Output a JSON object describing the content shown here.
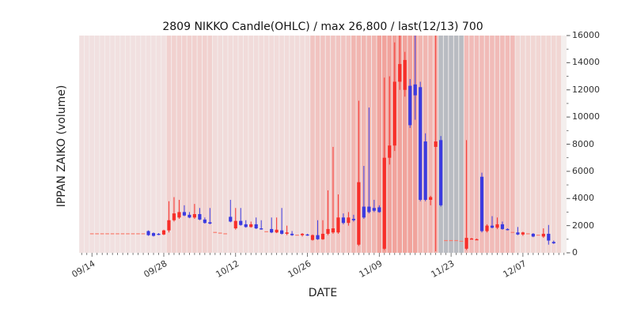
{
  "chart_data": {
    "type": "candlestick",
    "title": "2809 NIKKO Candle(OHLC) / max 26,800 / last(12/13) 700",
    "xlabel": "DATE",
    "ylabel": "IPPAN ZAIKO (volume)",
    "ylim": [
      0,
      16000
    ],
    "yticks": [
      0,
      2000,
      4000,
      6000,
      8000,
      10000,
      12000,
      14000,
      16000
    ],
    "xticks": [
      "09/14",
      "09/28",
      "10/12",
      "10/26",
      "11/09",
      "11/23",
      "12/07"
    ],
    "x_domain": [
      "09/12",
      "12/15"
    ],
    "plot_bg": "#f4efee",
    "colors": {
      "up": "#f72f2a",
      "down": "#3b3be0",
      "flat": "#f87c6e",
      "tick": "#555555"
    },
    "bands": [
      {
        "from": "09/12",
        "to": "09/29",
        "color": "#f0dcdc",
        "alpha": 0.8
      },
      {
        "from": "09/29",
        "to": "10/08",
        "color": "#f0c9c7",
        "alpha": 0.8
      },
      {
        "from": "10/08",
        "to": "10/27",
        "color": "#f0d6d4",
        "alpha": 0.8
      },
      {
        "from": "10/27",
        "to": "11/04",
        "color": "#f0bcb8",
        "alpha": 0.85
      },
      {
        "from": "11/04",
        "to": "11/09",
        "color": "#f0aca6",
        "alpha": 0.85
      },
      {
        "from": "11/09",
        "to": "11/17",
        "color": "#f19a92",
        "alpha": 0.9
      },
      {
        "from": "11/17",
        "to": "11/21",
        "color": "#f0aca6",
        "alpha": 0.85
      },
      {
        "from": "11/21",
        "to": "11/26",
        "color": "#b2b6bd",
        "alpha": 0.9
      },
      {
        "from": "11/26",
        "to": "12/06",
        "color": "#f0b2ae",
        "alpha": 0.85
      },
      {
        "from": "12/06",
        "to": "12/15",
        "color": "#f0cfcc",
        "alpha": 0.8
      }
    ],
    "candles": [
      [
        "09/14",
        1400,
        1400,
        1400,
        1400
      ],
      [
        "09/15",
        1400,
        1400,
        1400,
        1400
      ],
      [
        "09/16",
        1400,
        1400,
        1400,
        1400
      ],
      [
        "09/17",
        1400,
        1400,
        1400,
        1400
      ],
      [
        "09/18",
        1400,
        1400,
        1400,
        1400
      ],
      [
        "09/19",
        1400,
        1400,
        1400,
        1400
      ],
      [
        "09/20",
        1400,
        1400,
        1400,
        1400
      ],
      [
        "09/21",
        1400,
        1400,
        1400,
        1400
      ],
      [
        "09/22",
        1400,
        1400,
        1400,
        1400
      ],
      [
        "09/23",
        1400,
        1400,
        1400,
        1400
      ],
      [
        "09/24",
        1400,
        1400,
        1400,
        1400
      ],
      [
        "09/25",
        1600,
        1650,
        1250,
        1300
      ],
      [
        "09/26",
        1450,
        1500,
        1200,
        1250
      ],
      [
        "09/27",
        1400,
        1450,
        1300,
        1350
      ],
      [
        "09/28",
        1350,
        1700,
        1300,
        1650
      ],
      [
        "09/29",
        1650,
        3800,
        1500,
        2400
      ],
      [
        "09/30",
        2400,
        4100,
        2300,
        2900
      ],
      [
        "10/01",
        2600,
        3900,
        2500,
        3000
      ],
      [
        "10/02",
        3000,
        3500,
        2700,
        2750
      ],
      [
        "10/03",
        2800,
        3000,
        2550,
        2600
      ],
      [
        "10/04",
        2600,
        3600,
        2500,
        2850
      ],
      [
        "10/05",
        2850,
        3300,
        2400,
        2450
      ],
      [
        "10/06",
        2450,
        2600,
        2150,
        2200
      ],
      [
        "10/07",
        2250,
        3300,
        2100,
        2150
      ],
      [
        "10/08",
        1500,
        1500,
        1500,
        1500
      ],
      [
        "10/09",
        1450,
        1450,
        1450,
        1450
      ],
      [
        "10/10",
        1400,
        1400,
        1400,
        1400
      ],
      [
        "10/11",
        2650,
        3900,
        2250,
        2300
      ],
      [
        "10/12",
        1800,
        3300,
        1700,
        2350
      ],
      [
        "10/13",
        2350,
        3300,
        2000,
        2050
      ],
      [
        "10/14",
        2100,
        2400,
        1850,
        1900
      ],
      [
        "10/15",
        1900,
        2300,
        1850,
        2100
      ],
      [
        "10/16",
        2100,
        2600,
        1750,
        1800
      ],
      [
        "10/17",
        1800,
        2400,
        1700,
        1750
      ],
      [
        "10/18",
        1550,
        1550,
        1550,
        1550
      ],
      [
        "10/19",
        1750,
        2600,
        1450,
        1500
      ],
      [
        "10/20",
        1500,
        2600,
        1450,
        1700
      ],
      [
        "10/21",
        1650,
        3300,
        1350,
        1400
      ],
      [
        "10/22",
        1400,
        2000,
        1300,
        1500
      ],
      [
        "10/23",
        1400,
        1600,
        1250,
        1300
      ],
      [
        "10/24",
        1300,
        1300,
        1300,
        1300
      ],
      [
        "10/25",
        1300,
        1450,
        1200,
        1400
      ],
      [
        "10/26",
        1350,
        1400,
        1250,
        1300
      ],
      [
        "10/27",
        950,
        1350,
        900,
        1300
      ],
      [
        "10/28",
        1300,
        2400,
        950,
        1000
      ],
      [
        "10/29",
        1000,
        2400,
        950,
        1400
      ],
      [
        "10/30",
        1400,
        4600,
        1300,
        1750
      ],
      [
        "10/31",
        1500,
        7800,
        1400,
        1800
      ],
      [
        "11/01",
        1500,
        4300,
        1400,
        2600
      ],
      [
        "11/02",
        2600,
        2900,
        2100,
        2200
      ],
      [
        "11/03",
        2200,
        3000,
        2000,
        2600
      ],
      [
        "11/04",
        2500,
        2800,
        2300,
        2400
      ],
      [
        "11/05",
        600,
        11200,
        500,
        5200
      ],
      [
        "11/06",
        3400,
        6400,
        2500,
        2600
      ],
      [
        "11/07",
        3400,
        10700,
        2900,
        3000
      ],
      [
        "11/08",
        3300,
        3900,
        3000,
        3100
      ],
      [
        "11/09",
        3350,
        3500,
        2950,
        3000
      ],
      [
        "11/10",
        300,
        12900,
        200,
        7000
      ],
      [
        "11/11",
        7000,
        13000,
        6500,
        7900
      ],
      [
        "11/12",
        7900,
        15500,
        7500,
        12600
      ],
      [
        "11/13",
        12600,
        16000,
        12000,
        13900
      ],
      [
        "11/14",
        12000,
        14800,
        11500,
        14200
      ],
      [
        "11/15",
        12300,
        12800,
        9200,
        9400
      ],
      [
        "11/16",
        12400,
        16000,
        9800,
        11600
      ],
      [
        "11/17",
        12200,
        12600,
        3800,
        3900
      ],
      [
        "11/18",
        8200,
        8800,
        3800,
        3900
      ],
      [
        "11/19",
        3900,
        4200,
        3500,
        4100
      ],
      [
        "11/20",
        7800,
        16000,
        100,
        8200
      ],
      [
        "11/21",
        8300,
        8600,
        3400,
        3500
      ],
      [
        "11/22",
        900,
        900,
        900,
        900
      ],
      [
        "11/23",
        900,
        900,
        900,
        900
      ],
      [
        "11/24",
        900,
        900,
        900,
        900
      ],
      [
        "11/25",
        850,
        850,
        850,
        850
      ],
      [
        "11/26",
        300,
        8300,
        200,
        1100
      ],
      [
        "11/27",
        1050,
        1100,
        1000,
        1050
      ],
      [
        "11/28",
        1000,
        1050,
        950,
        1000
      ],
      [
        "11/29",
        5600,
        5900,
        1500,
        1600
      ],
      [
        "11/30",
        1600,
        2100,
        1500,
        2000
      ],
      [
        "12/01",
        2000,
        2700,
        1800,
        1850
      ],
      [
        "12/02",
        1850,
        2600,
        1750,
        2100
      ],
      [
        "12/03",
        2100,
        2300,
        1700,
        1750
      ],
      [
        "12/04",
        1750,
        1800,
        1650,
        1700
      ],
      [
        "12/05",
        1500,
        1500,
        1500,
        1500
      ],
      [
        "12/06",
        1500,
        1900,
        1300,
        1350
      ],
      [
        "12/07",
        1350,
        1550,
        1250,
        1500
      ],
      [
        "12/08",
        1400,
        1400,
        1400,
        1400
      ],
      [
        "12/09",
        1400,
        1450,
        1150,
        1200
      ],
      [
        "12/10",
        1300,
        1300,
        1300,
        1300
      ],
      [
        "12/11",
        1200,
        1800,
        1100,
        1400
      ],
      [
        "12/12",
        1400,
        2050,
        600,
        900
      ],
      [
        "12/13",
        800,
        900,
        650,
        700
      ]
    ]
  }
}
